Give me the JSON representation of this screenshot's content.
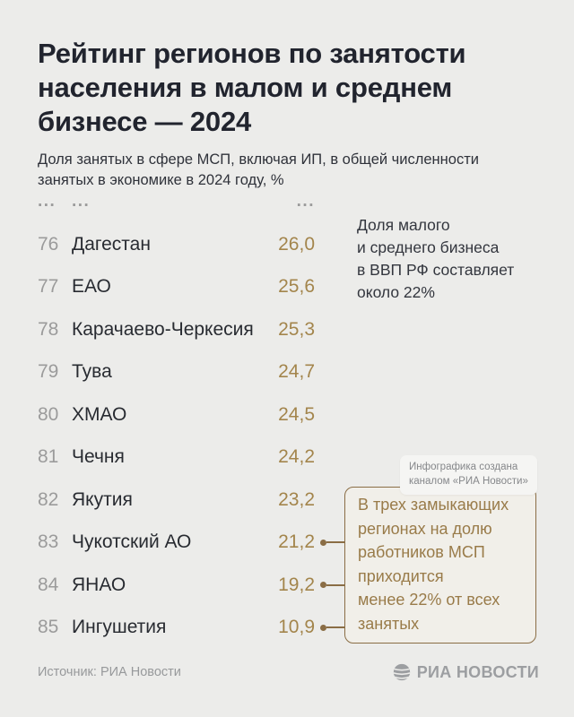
{
  "header": {
    "title": "Рейтинг регионов по занятости\nнаселения в малом и среднем\nбизнесе — 2024",
    "subtitle": "Доля занятых в сфере МСП, включая ИП, в общей численности\nзанятых в экономике в 2024 году, %"
  },
  "table": {
    "ellipsis": {
      "rank": "...",
      "region": "...",
      "value": "..."
    },
    "rows": [
      {
        "rank": "76",
        "region": "Дагестан",
        "value": "26,0",
        "connector": false
      },
      {
        "rank": "77",
        "region": "ЕАО",
        "value": "25,6",
        "connector": false
      },
      {
        "rank": "78",
        "region": "Карачаево-Черкесия",
        "value": "25,3",
        "connector": false
      },
      {
        "rank": "79",
        "region": "Тува",
        "value": "24,7",
        "connector": false
      },
      {
        "rank": "80",
        "region": "ХМАО",
        "value": "24,5",
        "connector": false
      },
      {
        "rank": "81",
        "region": "Чечня",
        "value": "24,2",
        "connector": false
      },
      {
        "rank": "82",
        "region": "Якутия",
        "value": "23,2",
        "connector": false
      },
      {
        "rank": "83",
        "region": "Чукотский АО",
        "value": "21,2",
        "connector": true
      },
      {
        "rank": "84",
        "region": "ЯНАО",
        "value": "19,2",
        "connector": true
      },
      {
        "rank": "85",
        "region": "Ингушетия",
        "value": "10,9",
        "connector": true
      }
    ]
  },
  "side_note": "Доля малого\nи среднего бизнеса\nв ВВП РФ составляет\nоколо 22%",
  "credit_badge": "Инфографика создана\nканалом «РИА Новости»",
  "callout": "В трех замыкающих\nрегионах на долю\nработников МСП\nприходится\nменее 22% от всех\nзанятых",
  "footer": {
    "source": "Источник: РИА Новости",
    "logo_text": "РИА НОВОСТИ"
  },
  "colors": {
    "background": "#ECECEA",
    "title_text": "#21242E",
    "subtitle_text": "#2F323A",
    "rank_gray": "#9B9B9B",
    "region_text": "#282B31",
    "value_gold": "#A3854C",
    "connector_gold": "#8A6D45",
    "callout_text": "#997B49",
    "callout_bg": "#F1EFE9",
    "badge_bg": "#F5F5F3",
    "badge_text": "#85878A",
    "footer_gray": "#97999B",
    "logo_gray": "#9C9EA1"
  },
  "chart_data": {
    "type": "table",
    "title": "Рейтинг регионов по занятости населения в малом и среднем бизнесе — 2024",
    "subtitle": "Доля занятых в сфере МСП, включая ИП, в общей численности занятых в экономике в 2024 году, %",
    "categories": [
      "Дагестан",
      "ЕАО",
      "Карачаево-Черкесия",
      "Тува",
      "ХМАО",
      "Чечня",
      "Якутия",
      "Чукотский АО",
      "ЯНАО",
      "Ингушетия"
    ],
    "ranks": [
      76,
      77,
      78,
      79,
      80,
      81,
      82,
      83,
      84,
      85
    ],
    "values": [
      26.0,
      25.6,
      25.3,
      24.7,
      24.5,
      24.2,
      23.2,
      21.2,
      19.2,
      10.9
    ],
    "annotations": [
      "Доля малого и среднего бизнеса в ВВП РФ составляет около 22%",
      "В трех замыкающих регионах на долю работников МСП приходится менее 22% от всех занятых"
    ],
    "source": "РИА Новости"
  }
}
